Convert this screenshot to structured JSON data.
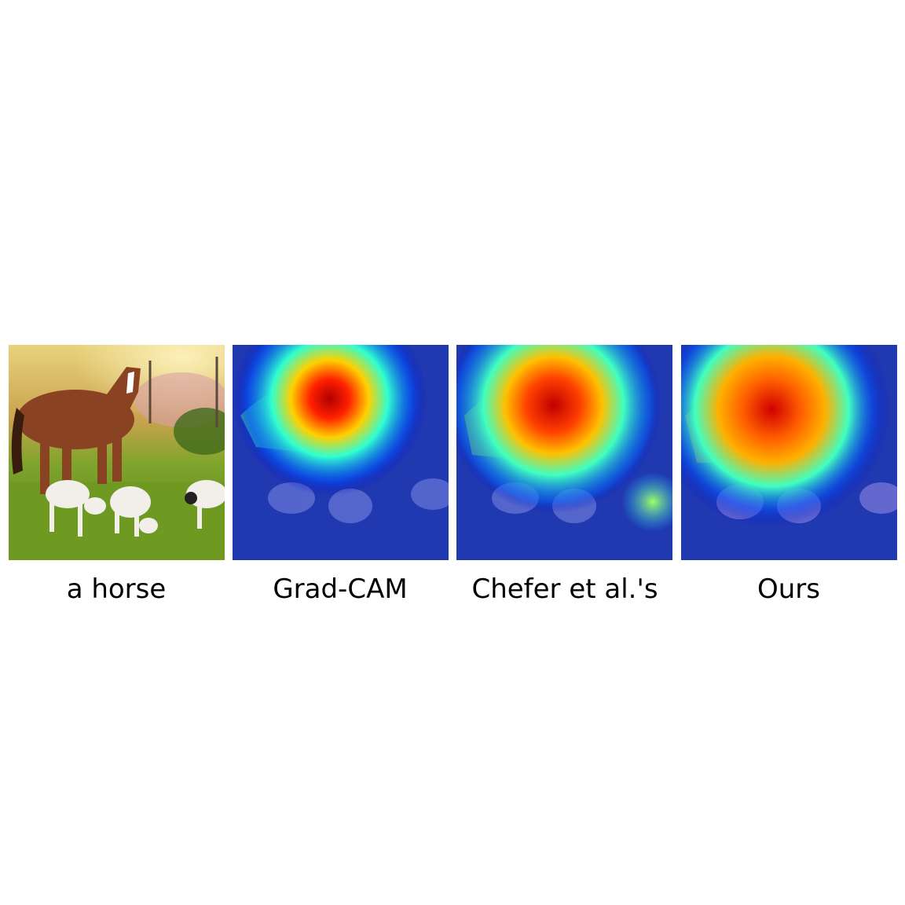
{
  "figure": {
    "panels": [
      {
        "caption": "a horse",
        "kind": "photo"
      },
      {
        "caption": "Grad-CAM",
        "kind": "heatmap-overlay",
        "hotspot": "horse-head-neck"
      },
      {
        "caption": "Chefer et al.'s",
        "kind": "heatmap-overlay",
        "hotspot": "horse-head-neck-body"
      },
      {
        "caption": "Ours",
        "kind": "heatmap-overlay",
        "hotspot": "horse-full-body"
      }
    ],
    "colors": {
      "colormap": [
        "#00007f",
        "#0000ff",
        "#00ffff",
        "#ffff00",
        "#ff0000",
        "#7f0000"
      ],
      "background": "#ffffff",
      "text": "#000000"
    }
  }
}
